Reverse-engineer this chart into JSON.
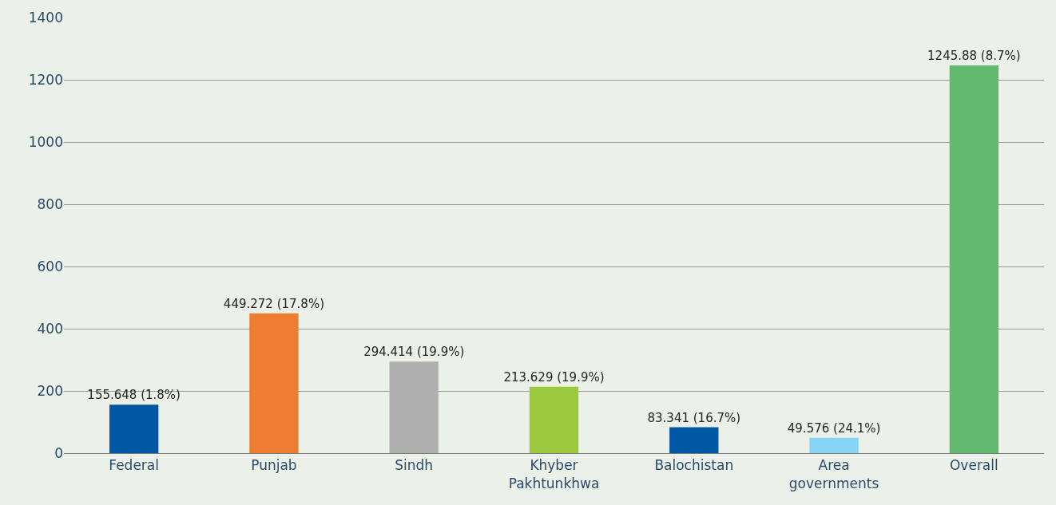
{
  "chart_data": {
    "type": "bar",
    "categories": [
      "Federal",
      "Punjab",
      "Sindh",
      "Khyber Pakhtunkhwa",
      "Balochistan",
      "Area governments",
      "Overall"
    ],
    "values": [
      155.648,
      449.272,
      294.414,
      213.629,
      83.341,
      49.576,
      1245.88
    ],
    "value_labels": [
      "155.648 (1.8%)",
      "449.272 (17.8%)",
      "294.414 (19.9%)",
      "213.629 (19.9%)",
      "83.341 (16.7%)",
      "49.576 (24.1%)",
      "1245.88 (8.7%)"
    ],
    "colors": [
      "#0057a3",
      "#ed7d31",
      "#b0b0b0",
      "#9bc83c",
      "#0057a3",
      "#87d3f5",
      "#63b86f"
    ],
    "ylim": [
      0,
      1400
    ],
    "yticks": [
      0,
      200,
      400,
      600,
      800,
      1000,
      1200,
      1400
    ],
    "grid": "y",
    "legend": false
  }
}
